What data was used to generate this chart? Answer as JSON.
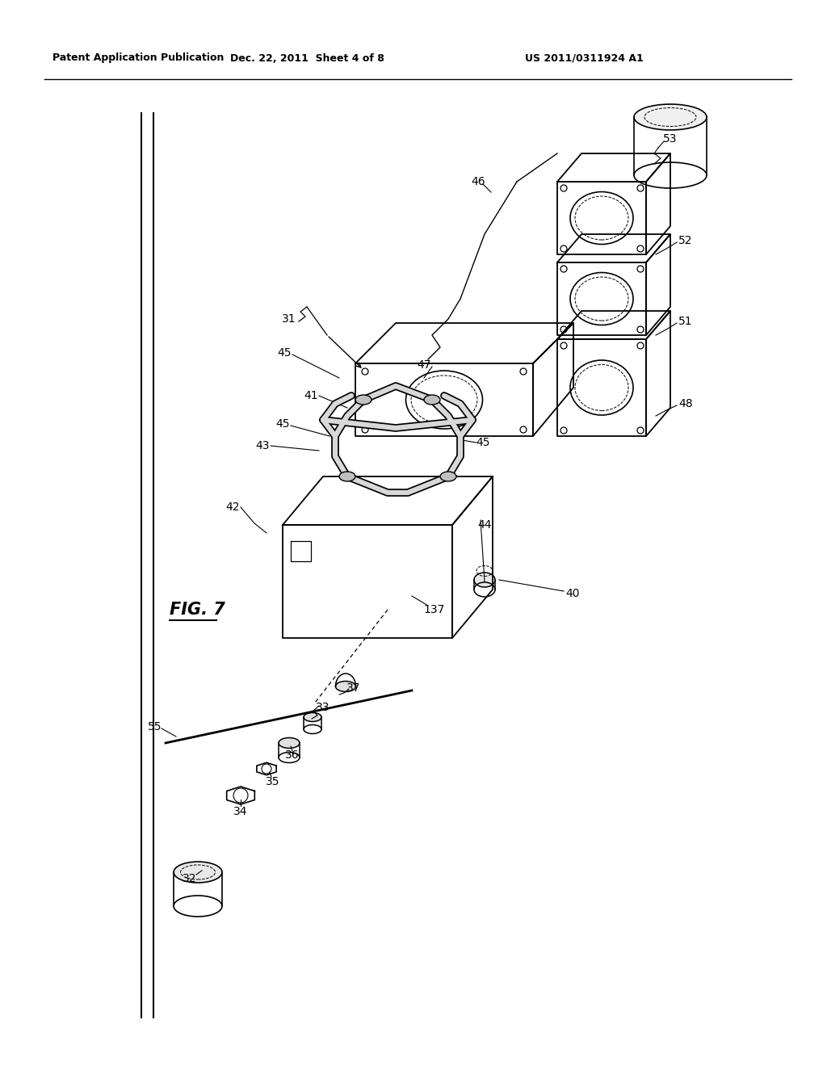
{
  "title": "FIG. 7",
  "patent_header_left": "Patent Application Publication",
  "patent_header_mid": "Dec. 22, 2011  Sheet 4 of 8",
  "patent_header_right": "US 2011/0311924 A1",
  "bg_color": "#ffffff",
  "line_color": "#000000"
}
